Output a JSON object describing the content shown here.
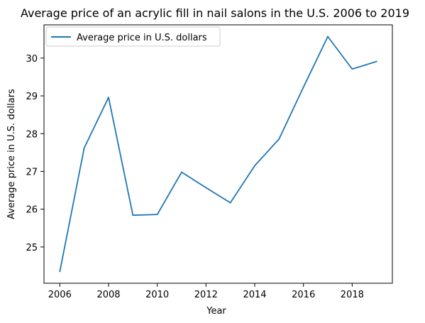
{
  "chart_data": {
    "type": "line",
    "title": "Average price of an acrylic fill in nail salons in the U.S. 2006 to 2019",
    "xlabel": "Year",
    "ylabel": "Average price in U.S. dollars",
    "x": [
      2006,
      2007,
      2008,
      2009,
      2010,
      2011,
      2012,
      2013,
      2014,
      2015,
      2016,
      2017,
      2018,
      2019
    ],
    "series": [
      {
        "name": "Average price in U.S. dollars",
        "color": "#1f77b4",
        "values": [
          24.35,
          27.62,
          28.96,
          25.84,
          25.86,
          26.98,
          26.57,
          26.17,
          27.15,
          27.86,
          29.23,
          30.57,
          29.71,
          29.91
        ]
      }
    ],
    "xticks": [
      2006,
      2008,
      2010,
      2012,
      2014,
      2016,
      2018
    ],
    "yticks": [
      25,
      26,
      27,
      28,
      29,
      30
    ],
    "xlim": [
      2005.35,
      2019.65
    ],
    "ylim": [
      24.04,
      30.88
    ],
    "grid": false,
    "legend_position": "upper-left"
  }
}
